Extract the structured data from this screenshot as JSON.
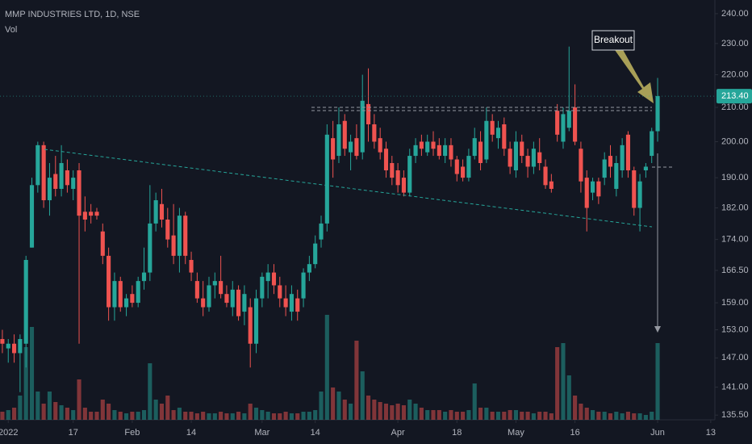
{
  "chart_data": {
    "type": "candlestick",
    "title": "MMP INDUSTRIES LTD, 1D, NSE",
    "subtitle": "Vol",
    "annotation": "Breakout",
    "last_price_label": "213.40",
    "log_scale": true,
    "up_color": "#26a69a",
    "down_color": "#ef5350",
    "ylim": [
      134.6,
      244.7
    ],
    "yticks": [
      {
        "value": 135.5,
        "label": "135.50"
      },
      {
        "value": 141,
        "label": "141.00"
      },
      {
        "value": 147,
        "label": "147.00"
      },
      {
        "value": 153,
        "label": "153.00"
      },
      {
        "value": 159,
        "label": "159.00"
      },
      {
        "value": 166.5,
        "label": "166.50"
      },
      {
        "value": 174,
        "label": "174.00"
      },
      {
        "value": 182,
        "label": "182.00"
      },
      {
        "value": 190,
        "label": "190.00"
      },
      {
        "value": 200,
        "label": "200.00"
      },
      {
        "value": 210,
        "label": "210.00"
      },
      {
        "value": 220,
        "label": "220.00"
      },
      {
        "value": 230,
        "label": "230.00"
      },
      {
        "value": 240,
        "label": "240.00"
      }
    ],
    "xlim": [
      -0.4,
      120.7
    ],
    "xticks": [
      {
        "value": 1,
        "label": "2022"
      },
      {
        "value": 12,
        "label": "17"
      },
      {
        "value": 22,
        "label": "Feb"
      },
      {
        "value": 32,
        "label": "14"
      },
      {
        "value": 44,
        "label": "Mar"
      },
      {
        "value": 53,
        "label": "14"
      },
      {
        "value": 67,
        "label": "Apr"
      },
      {
        "value": 77,
        "label": "18"
      },
      {
        "value": 87,
        "label": "May"
      },
      {
        "value": 97,
        "label": "16"
      },
      {
        "value": 111,
        "label": "Jun"
      },
      {
        "value": 120,
        "label": "13"
      }
    ],
    "open": [
      151,
      149,
      150,
      148,
      150,
      172,
      188,
      199,
      184,
      191,
      187,
      192,
      187,
      192,
      181,
      181,
      181,
      176,
      170,
      158,
      164,
      158,
      161,
      159,
      164,
      166,
      178,
      183,
      179,
      175,
      170,
      180,
      169,
      164,
      160,
      158,
      163,
      164,
      161,
      158,
      162,
      157,
      158,
      150,
      160,
      164,
      166,
      163,
      160,
      157,
      160,
      160,
      166,
      168,
      174,
      178,
      201,
      196,
      206,
      197,
      201,
      197,
      211,
      205,
      201,
      198,
      194,
      192,
      190,
      186,
      196,
      200,
      197,
      200,
      199,
      196,
      199,
      195,
      193,
      190,
      196,
      200,
      195,
      206,
      201,
      205,
      198,
      192,
      200,
      196,
      193,
      197,
      193,
      189,
      209,
      200,
      204,
      210,
      198,
      190,
      186,
      189,
      190,
      196,
      187,
      192,
      202,
      192,
      182,
      192,
      196,
      203
    ],
    "high": [
      153,
      151,
      152,
      152,
      170,
      190,
      200,
      200,
      194,
      196,
      199,
      195,
      192,
      194,
      185,
      183,
      182,
      178,
      172,
      166,
      165,
      161,
      163,
      165,
      172,
      188,
      186,
      187,
      182,
      183,
      182,
      181,
      171,
      166,
      164,
      165,
      166,
      170,
      163,
      164,
      163,
      163,
      160,
      162,
      166,
      168,
      168,
      165,
      163,
      163,
      162,
      167,
      170,
      175,
      180,
      205,
      206,
      210,
      208,
      202,
      205,
      220,
      222,
      208,
      204,
      200,
      196,
      194,
      192,
      198,
      201,
      202,
      202,
      203,
      201,
      201,
      201,
      196,
      195,
      198,
      204,
      203,
      210,
      208,
      206,
      207,
      200,
      203,
      202,
      198,
      200,
      201,
      195,
      191,
      211,
      210,
      229,
      217,
      200,
      192,
      190,
      190,
      197,
      199,
      196,
      201,
      203,
      193,
      191,
      194,
      204,
      219
    ],
    "low": [
      148,
      146,
      146,
      140,
      145,
      172,
      186,
      182,
      180,
      185,
      185,
      186,
      184,
      150,
      176,
      178,
      179,
      168,
      155,
      155,
      157,
      156,
      158,
      158,
      162,
      164,
      176,
      177,
      172,
      168,
      166,
      168,
      164,
      159,
      156,
      157,
      160,
      160,
      158,
      156,
      155,
      154,
      145,
      148,
      158,
      160,
      161,
      158,
      156,
      155,
      155,
      158,
      164,
      167,
      172,
      176,
      190,
      194,
      196,
      192,
      195,
      195,
      200,
      198,
      195,
      190,
      188,
      186,
      185,
      185,
      194,
      196,
      196,
      196,
      195,
      194,
      193,
      189,
      189,
      189,
      195,
      192,
      194,
      200,
      198,
      196,
      191,
      190,
      194,
      190,
      191,
      192,
      187,
      186,
      200,
      198,
      203,
      199,
      186,
      176,
      184,
      183,
      188,
      190,
      185,
      190,
      190,
      180,
      176,
      190,
      194,
      200
    ],
    "close": [
      150,
      150,
      148,
      151,
      169,
      188,
      199,
      184,
      190,
      187,
      194,
      188,
      190,
      180,
      179,
      180,
      180,
      170,
      158,
      164,
      158,
      160,
      159,
      164,
      166,
      178,
      184,
      179,
      174,
      170,
      180,
      170,
      166,
      160,
      158,
      163,
      164,
      161,
      159,
      162,
      156,
      161,
      150,
      160,
      165,
      166,
      163,
      160,
      158,
      161,
      157,
      166,
      168,
      173,
      178,
      202,
      195,
      205,
      198,
      200,
      196,
      212,
      205,
      200,
      197,
      192,
      190,
      188,
      186,
      196,
      199,
      198,
      200,
      198,
      196,
      199,
      195,
      191,
      190,
      196,
      201,
      194,
      206,
      202,
      204,
      198,
      193,
      200,
      196,
      193,
      198,
      194,
      188,
      187,
      202,
      208,
      209,
      200,
      189,
      182,
      189,
      185,
      195,
      193,
      194,
      199,
      192,
      182,
      189,
      193,
      203,
      213.4
    ],
    "volume": [
      10,
      12,
      15,
      30,
      90,
      115,
      35,
      20,
      35,
      22,
      18,
      15,
      12,
      50,
      15,
      10,
      10,
      25,
      20,
      12,
      10,
      8,
      10,
      10,
      12,
      70,
      25,
      20,
      30,
      12,
      15,
      10,
      10,
      8,
      10,
      8,
      8,
      10,
      8,
      8,
      10,
      8,
      20,
      15,
      12,
      10,
      8,
      8,
      10,
      8,
      8,
      10,
      10,
      12,
      35,
      130,
      40,
      35,
      25,
      20,
      98,
      60,
      30,
      25,
      22,
      20,
      18,
      20,
      18,
      25,
      20,
      15,
      12,
      12,
      12,
      10,
      12,
      10,
      10,
      12,
      45,
      15,
      15,
      10,
      10,
      10,
      12,
      12,
      10,
      10,
      8,
      10,
      10,
      8,
      90,
      95,
      55,
      30,
      20,
      15,
      12,
      10,
      10,
      8,
      10,
      8,
      10,
      8,
      8,
      6,
      10,
      95
    ]
  }
}
